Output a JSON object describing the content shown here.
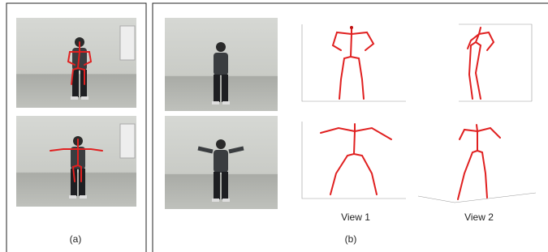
{
  "panels": {
    "a": {
      "caption": "(a)"
    },
    "b": {
      "caption": "(b)",
      "views": [
        "View 1",
        "View 2"
      ]
    }
  }
}
